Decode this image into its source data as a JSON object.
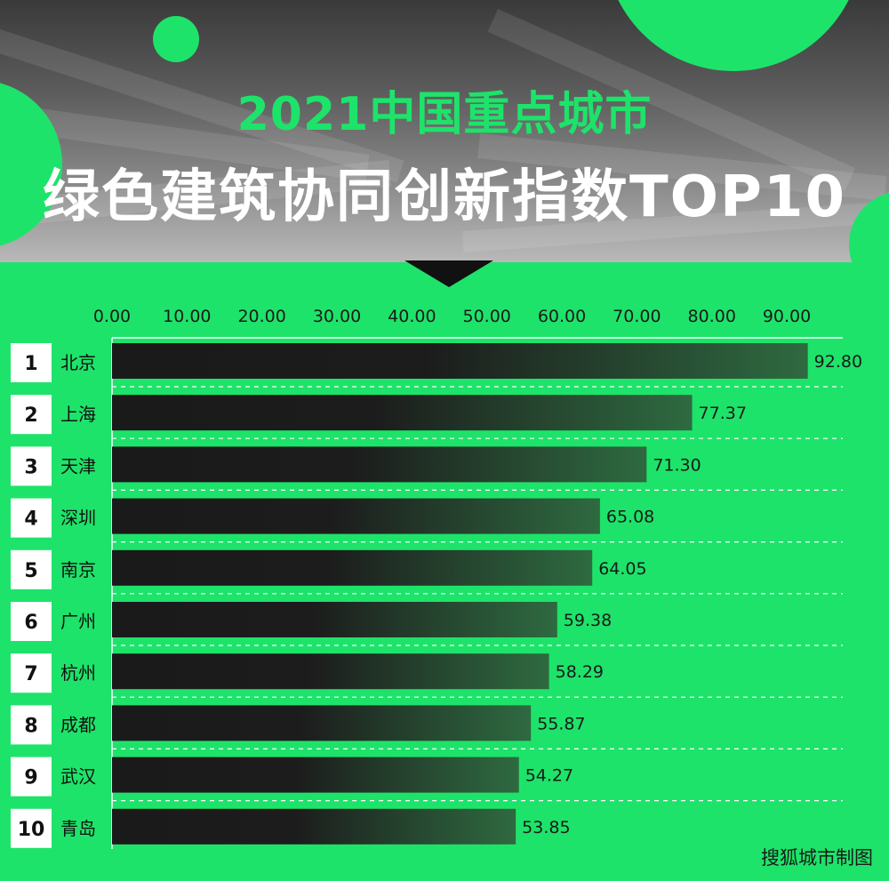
{
  "header": {
    "title_line1": "2021中国重点城市",
    "title_line2": "绿色建筑协同创新指数TOP10"
  },
  "credit": "搜狐城市制图",
  "colors": {
    "background": "#1ee36a",
    "bar_start": "#1a1a1a",
    "bar_end": "#2e6a40",
    "title_accent": "#1ee36a",
    "title_main": "#ffffff"
  },
  "chart_data": {
    "type": "bar",
    "orientation": "horizontal",
    "title": "",
    "xlabel": "",
    "ylabel": "",
    "xlim": [
      0,
      95
    ],
    "ticks": [
      "0.00",
      "10.00",
      "20.00",
      "30.00",
      "40.00",
      "50.00",
      "60.00",
      "70.00",
      "80.00",
      "90.00"
    ],
    "tick_values": [
      0,
      10,
      20,
      30,
      40,
      50,
      60,
      70,
      80,
      90
    ],
    "ranks": [
      "1",
      "2",
      "3",
      "4",
      "5",
      "6",
      "7",
      "8",
      "9",
      "10"
    ],
    "categories": [
      "北京",
      "上海",
      "天津",
      "深圳",
      "南京",
      "广州",
      "杭州",
      "成都",
      "武汉",
      "青岛"
    ],
    "values": [
      92.8,
      77.37,
      71.3,
      65.08,
      64.05,
      59.38,
      58.29,
      55.87,
      54.27,
      53.85
    ],
    "value_labels": [
      "92.80",
      "77.37",
      "71.30",
      "65.08",
      "64.05",
      "59.38",
      "58.29",
      "55.87",
      "54.27",
      "53.85"
    ],
    "grid": "dashed horizontal separators",
    "legend": "none"
  }
}
